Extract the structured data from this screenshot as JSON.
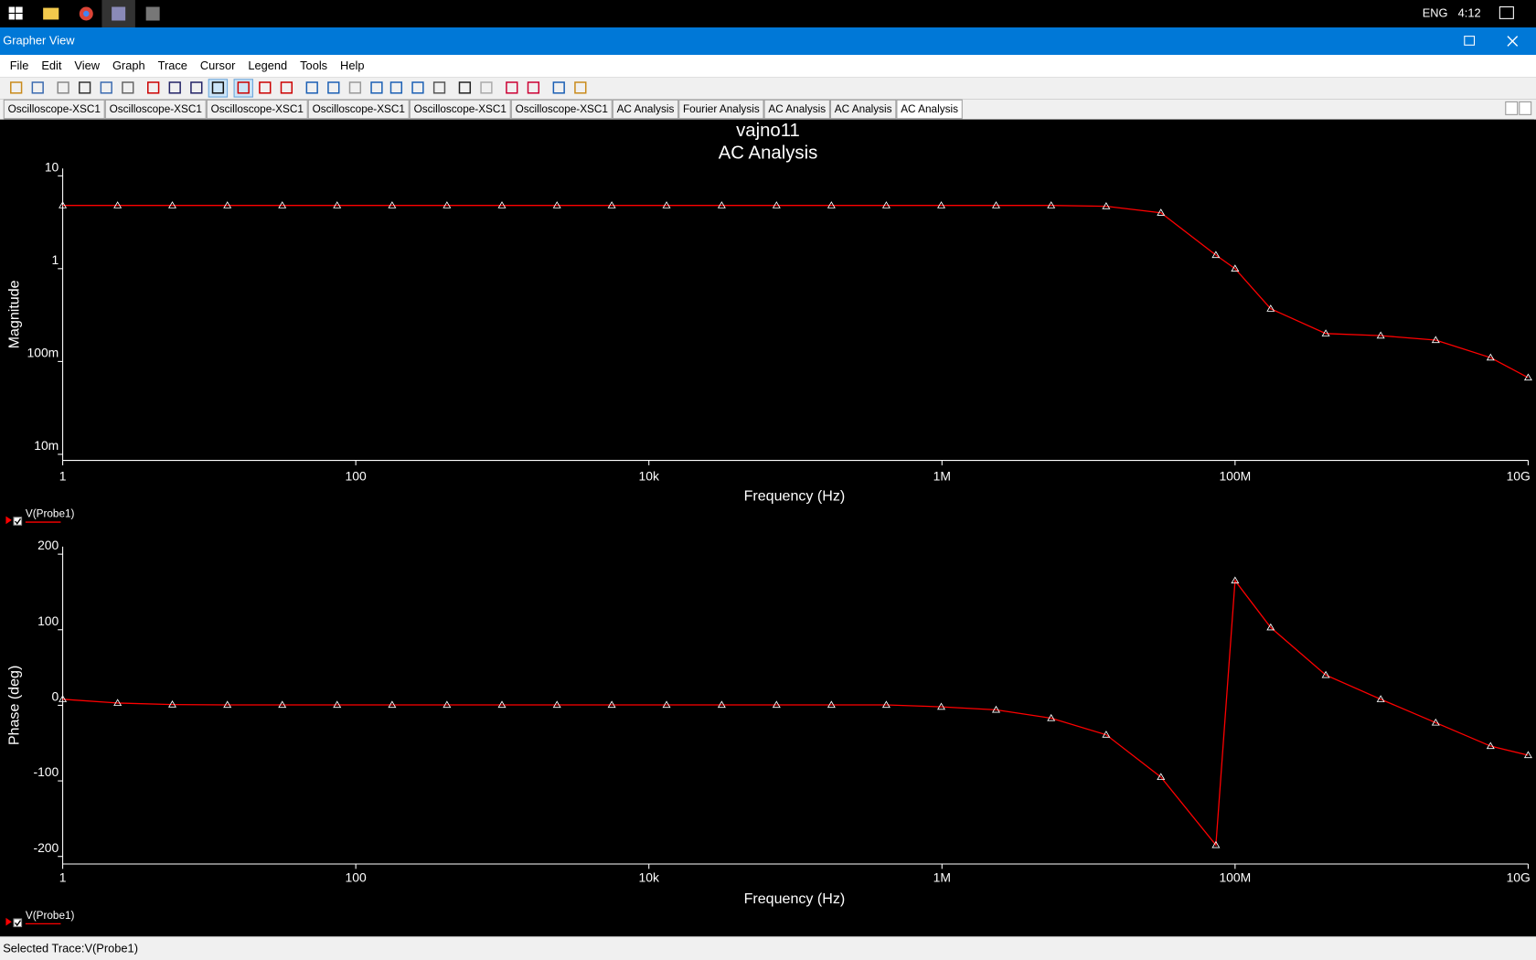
{
  "taskbar": {
    "language": "ENG",
    "clock": "4:12"
  },
  "window": {
    "title": "Grapher View"
  },
  "menu": [
    "File",
    "Edit",
    "View",
    "Graph",
    "Trace",
    "Cursor",
    "Legend",
    "Tools",
    "Help"
  ],
  "tabs": [
    "Oscilloscope-XSC1",
    "Oscilloscope-XSC1",
    "Oscilloscope-XSC1",
    "Oscilloscope-XSC1",
    "Oscilloscope-XSC1",
    "Oscilloscope-XSC1",
    "AC Analysis",
    "Fourier Analysis",
    "AC Analysis",
    "AC Analysis",
    "AC Analysis"
  ],
  "active_tab": 10,
  "graph": {
    "title": "vajno11",
    "subtitle": "AC Analysis"
  },
  "chart_data": [
    {
      "type": "line",
      "xlabel": "Frequency (Hz)",
      "ylabel": "Magnitude",
      "xlog": true,
      "ylog": true,
      "x": [
        1,
        2.37,
        5.6,
        13.3,
        31.5,
        74.6,
        177,
        419,
        994,
        2360,
        5580,
        13200,
        31400,
        74300,
        176000,
        417000,
        989000,
        2340000,
        5560000,
        13200000,
        31200000,
        74000000,
        100000000,
        175000000,
        416000000,
        986000000,
        2340000000,
        5540000000,
        10000000000
      ],
      "xlim": [
        1,
        10000000000
      ],
      "xticks": [
        1,
        100,
        {
          "value": 10000,
          "label": "10k"
        },
        {
          "value": 1000000,
          "label": "1M"
        },
        {
          "value": 100000000,
          "label": "100M"
        },
        {
          "value": 10000000000,
          "label": "10G"
        }
      ],
      "ylim": [
        0.0086,
        12
      ],
      "yticks": [
        10,
        1,
        {
          "value": 0.1,
          "label": "100m"
        },
        {
          "value": 0.01,
          "label": "10m"
        }
      ],
      "series": [
        {
          "name": "V(Probe1)",
          "color": "#ff0000",
          "values": [
            4.8,
            4.8,
            4.8,
            4.8,
            4.8,
            4.8,
            4.8,
            4.8,
            4.8,
            4.8,
            4.8,
            4.8,
            4.8,
            4.8,
            4.8,
            4.8,
            4.8,
            4.8,
            4.8,
            4.7,
            4.0,
            1.4,
            1.0,
            0.37,
            0.2,
            0.19,
            0.17,
            0.11,
            0.067
          ]
        }
      ]
    },
    {
      "type": "line",
      "xlabel": "Frequency (Hz)",
      "ylabel": "Phase (deg)",
      "xlog": true,
      "ylog": false,
      "x": [
        1,
        2.37,
        5.6,
        13.3,
        31.5,
        74.6,
        177,
        419,
        994,
        2360,
        5580,
        13200,
        31400,
        74300,
        176000,
        417000,
        989000,
        2340000,
        5560000,
        13200000,
        31200000,
        74000000,
        100000000,
        175000000,
        416000000,
        986000000,
        2340000000,
        5540000000,
        10000000000
      ],
      "xlim": [
        1,
        10000000000
      ],
      "xticks": [
        1,
        100,
        {
          "value": 10000,
          "label": "10k"
        },
        {
          "value": 1000000,
          "label": "1M"
        },
        {
          "value": 100000000,
          "label": "100M"
        },
        {
          "value": 10000000000,
          "label": "10G"
        }
      ],
      "ylim": [
        -210,
        210
      ],
      "yticks": [
        200,
        100,
        0,
        -100,
        -200
      ],
      "series": [
        {
          "name": "V(Probe1)",
          "color": "#ff0000",
          "values": [
            8,
            3,
            1,
            0.5,
            0.5,
            0.5,
            0.5,
            0.5,
            0.5,
            0.5,
            0.5,
            0.5,
            0.5,
            0.5,
            0.5,
            0.5,
            -2,
            -6,
            -17,
            -39,
            -95,
            -185,
            165,
            103,
            40,
            8,
            -23,
            -54,
            -66
          ]
        }
      ]
    }
  ],
  "status": "Selected Trace:V(Probe1)"
}
